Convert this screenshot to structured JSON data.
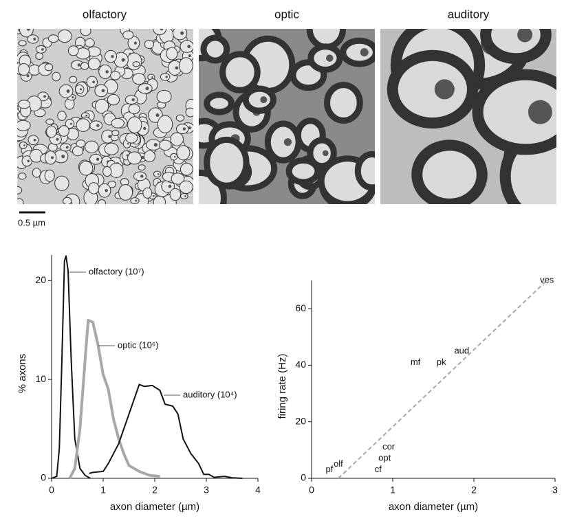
{
  "panels": [
    "olfactory",
    "optic",
    "auditory"
  ],
  "scale_bar": "0.5 µm",
  "chart_data": [
    {
      "type": "line",
      "xlabel": "axon diameter (µm)",
      "ylabel": "% axons",
      "xlim": [
        0,
        4
      ],
      "xticks": [
        0,
        1,
        2,
        3,
        4
      ],
      "ylim": [
        0,
        22.6
      ],
      "yticks": [
        0,
        10,
        20
      ],
      "series": [
        {
          "name": "olfactory (10⁷)",
          "color": "#111111",
          "x": [
            0,
            0.1,
            0.15,
            0.2,
            0.25,
            0.28,
            0.32,
            0.38,
            0.45,
            0.55,
            0.65,
            0.75
          ],
          "values": [
            0,
            0.2,
            3,
            12,
            22,
            22.5,
            21,
            12,
            4,
            1,
            0.3,
            0
          ]
        },
        {
          "name": "optic (10⁶)",
          "color": "#a8a8a8",
          "x": [
            0.35,
            0.45,
            0.55,
            0.65,
            0.71,
            0.8,
            0.9,
            1.0,
            1.1,
            1.2,
            1.3,
            1.4,
            1.5,
            1.7,
            1.9,
            2.1
          ],
          "values": [
            0,
            1,
            5,
            12,
            16,
            15.8,
            13.5,
            10.5,
            9,
            6,
            4,
            2.5,
            1.3,
            0.7,
            0.3,
            0.2
          ]
        },
        {
          "name": "auditory (10⁴)",
          "color": "#111111",
          "x": [
            0.73,
            0.8,
            1.0,
            1.1,
            1.3,
            1.5,
            1.7,
            1.8,
            1.95,
            2.1,
            2.2,
            2.35,
            2.45,
            2.55,
            2.7,
            2.85,
            2.95,
            3.05,
            3.15,
            3.35,
            3.5,
            3.7
          ],
          "values": [
            0.5,
            0.6,
            0.7,
            1.5,
            3.5,
            6.5,
            9.5,
            9.3,
            9.4,
            8.9,
            7.5,
            7.3,
            6.5,
            4,
            2.5,
            1.5,
            0.4,
            0.4,
            0.1,
            0.2,
            0.05,
            0
          ]
        }
      ]
    },
    {
      "type": "scatter",
      "xlabel": "axon diameter (µm)",
      "ylabel": "firing rate (Hz)",
      "xlim": [
        0,
        3
      ],
      "xticks": [
        0,
        1,
        2,
        3
      ],
      "ylim": [
        0,
        70
      ],
      "yticks": [
        0,
        20,
        40,
        60
      ],
      "labels": [
        "pf",
        "olf",
        "cor",
        "opt",
        "cf",
        "mf",
        "pk",
        "aud",
        "ves"
      ],
      "x": [
        0.22,
        0.33,
        0.95,
        0.9,
        0.82,
        1.28,
        1.6,
        1.85,
        2.9
      ],
      "values": [
        3,
        5,
        11,
        7,
        3,
        41,
        41,
        45,
        70
      ],
      "fit_line": {
        "color": "#a8a8a8",
        "x": [
          0.33,
          2.9
        ],
        "values": [
          0,
          70
        ]
      }
    }
  ]
}
